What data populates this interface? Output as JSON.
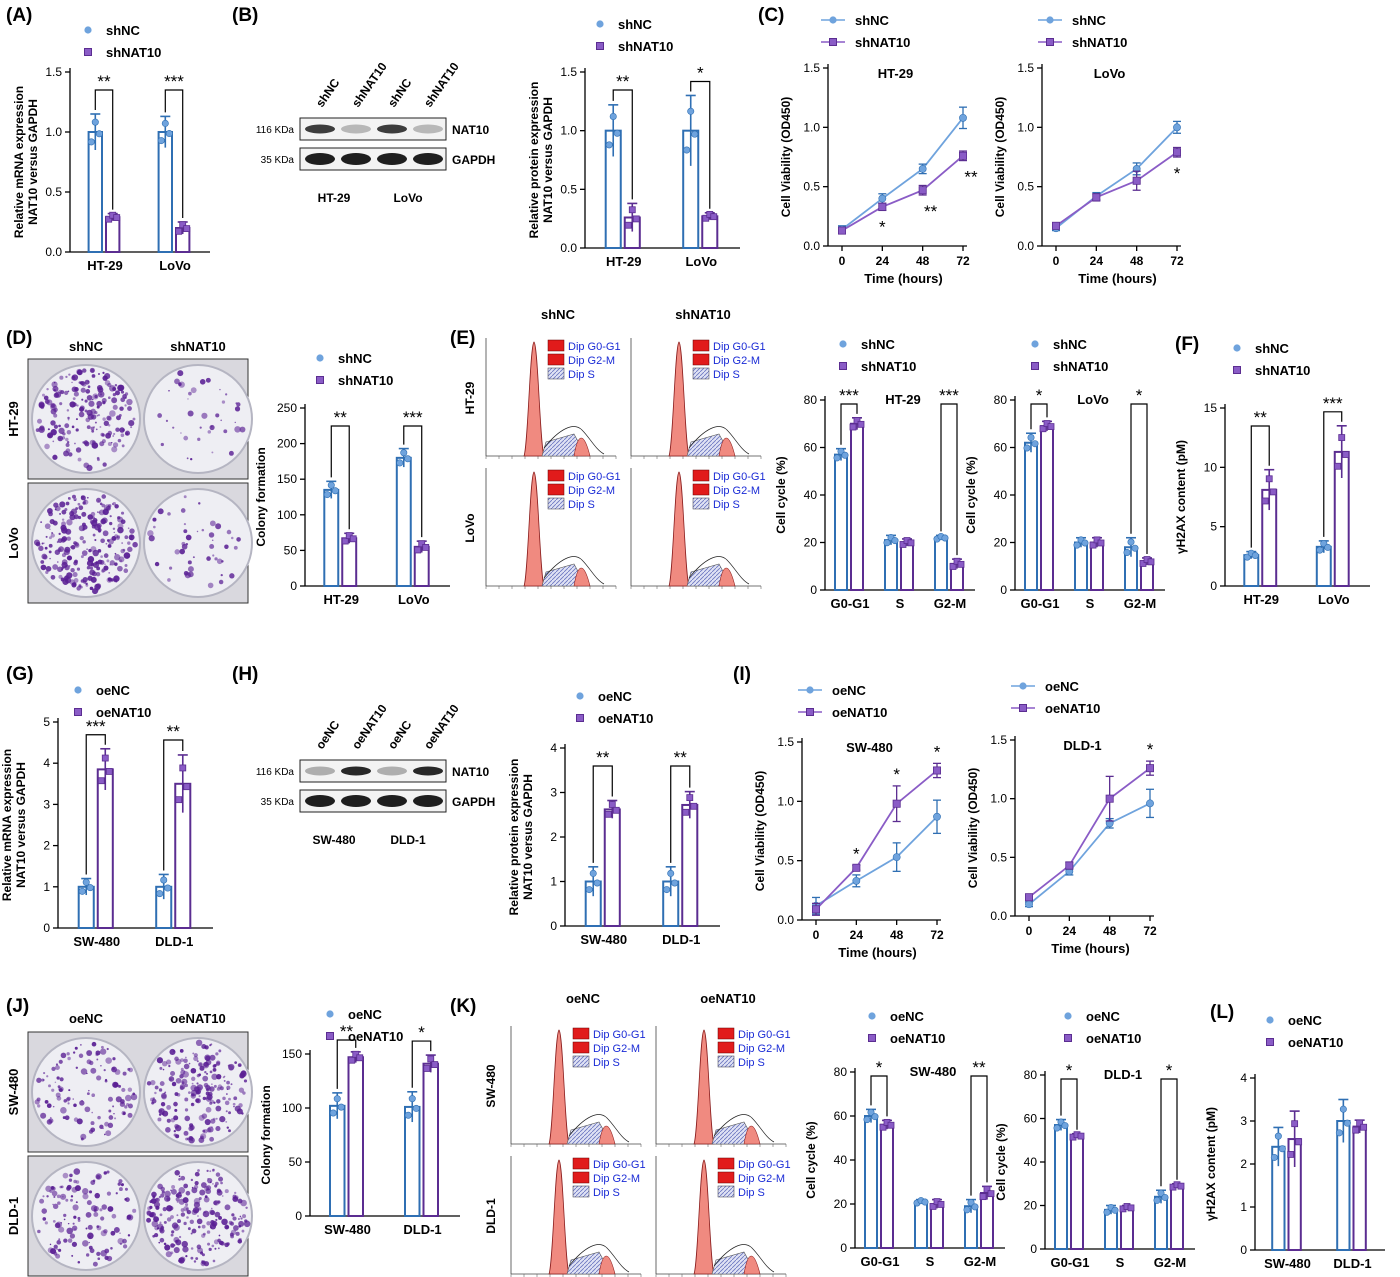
{
  "colors": {
    "ctrl": "#2f6fb3",
    "ctrl_marker": "#6fa3dd",
    "trt": "#5b2d91",
    "trt_marker": "#8a5cc6",
    "axis": "#000000",
    "dish_bg": "#eeeef3",
    "colony": "#5a1f94",
    "peak": "#f08a80",
    "s_phase": "#c9cde8",
    "flow_legend_red": "#e11b1b",
    "flow_text": "#1a2bd6"
  },
  "panels": {
    "A": {
      "label": "(A)"
    },
    "B": {
      "label": "(B)"
    },
    "C": {
      "label": "(C)"
    },
    "D": {
      "label": "(D)"
    },
    "E": {
      "label": "(E)"
    },
    "F": {
      "label": "(F)"
    },
    "G": {
      "label": "(G)"
    },
    "H": {
      "label": "(H)"
    },
    "I": {
      "label": "(I)"
    },
    "J": {
      "label": "(J)"
    },
    "K": {
      "label": "(K)"
    },
    "L": {
      "label": "(L)"
    }
  },
  "blots": [
    {
      "id": "B",
      "lanes": [
        "shNC",
        "shNAT10",
        "shNC",
        "shNAT10"
      ],
      "rows": [
        {
          "kda": "116 KDa",
          "name": "NAT10",
          "intensity": [
            0.85,
            0.25,
            0.85,
            0.25
          ]
        },
        {
          "kda": "35 KDa",
          "name": "GAPDH",
          "intensity": [
            1,
            1,
            1,
            1
          ]
        }
      ],
      "groups": [
        "HT-29",
        "LoVo"
      ]
    },
    {
      "id": "H",
      "lanes": [
        "oeNC",
        "oeNAT10",
        "oeNC",
        "oeNAT10"
      ],
      "rows": [
        {
          "kda": "116 KDa",
          "name": "NAT10",
          "intensity": [
            0.3,
            0.95,
            0.3,
            0.95
          ]
        },
        {
          "kda": "35 KDa",
          "name": "GAPDH",
          "intensity": [
            1,
            1,
            1,
            1
          ]
        }
      ],
      "groups": [
        "SW-480",
        "DLD-1"
      ]
    }
  ],
  "dishes": [
    {
      "id": "D",
      "cols": [
        "shNC",
        "shNAT10"
      ],
      "rows": [
        "HT-29",
        "LoVo"
      ],
      "density": [
        [
          0.75,
          0.15
        ],
        [
          0.95,
          0.18
        ]
      ]
    },
    {
      "id": "J",
      "cols": [
        "oeNC",
        "oeNAT10"
      ],
      "rows": [
        "SW-480",
        "DLD-1"
      ],
      "density": [
        [
          0.45,
          0.8
        ],
        [
          0.5,
          0.85
        ]
      ]
    }
  ],
  "flow": [
    {
      "id": "E",
      "cols": [
        "shNC",
        "shNAT10"
      ],
      "rows": [
        "HT-29",
        "LoVo"
      ],
      "legend": [
        "Dip G0-G1",
        "Dip G2-M",
        "Dip S"
      ]
    },
    {
      "id": "K",
      "cols": [
        "oeNC",
        "oeNAT10"
      ],
      "rows": [
        "SW-480",
        "DLD-1"
      ],
      "legend": [
        "Dip G0-G1",
        "Dip G2-M",
        "Dip S"
      ]
    }
  ],
  "chart_data": [
    {
      "id": "A",
      "type": "bar",
      "legend": [
        "shNC",
        "shNAT10"
      ],
      "categories": [
        "HT-29",
        "LoVo"
      ],
      "ylabel": "Relative mRNA expression NAT10 versus GAPDH",
      "ylim": [
        0,
        1.5
      ],
      "yticks": [
        "0.0",
        "0.5",
        "1.0",
        "1.5"
      ],
      "series": [
        {
          "name": "shNC",
          "values": [
            1.0,
            1.0
          ],
          "errors": [
            0.15,
            0.13
          ]
        },
        {
          "name": "shNAT10",
          "values": [
            0.29,
            0.2
          ],
          "errors": [
            0.03,
            0.05
          ]
        }
      ],
      "sig": [
        "**",
        "***"
      ]
    },
    {
      "id": "Bq",
      "type": "bar",
      "legend": [
        "shNC",
        "shNAT10"
      ],
      "categories": [
        "HT-29",
        "LoVo"
      ],
      "ylabel": "Relative protein expression NAT10 versus GAPDH",
      "ylim": [
        0,
        1.5
      ],
      "yticks": [
        "0.0",
        "0.5",
        "1.0",
        "1.5"
      ],
      "series": [
        {
          "name": "shNC",
          "values": [
            1.0,
            1.0
          ],
          "errors": [
            0.22,
            0.3
          ]
        },
        {
          "name": "shNAT10",
          "values": [
            0.26,
            0.27
          ],
          "errors": [
            0.12,
            0.03
          ]
        }
      ],
      "sig": [
        "**",
        "*"
      ]
    },
    {
      "id": "C1",
      "type": "line",
      "legend": [
        "shNC",
        "shNAT10"
      ],
      "title": "HT-29",
      "x": [
        0,
        24,
        48,
        72
      ],
      "xlabel": "Time (hours)",
      "ylabel": "Cell Viability (OD450)",
      "ylim": [
        0,
        1.5
      ],
      "yticks": [
        "0.0",
        "0.5",
        "1.0",
        "1.5"
      ],
      "series": [
        {
          "name": "shNC",
          "values": [
            0.14,
            0.4,
            0.65,
            1.08
          ],
          "errors": [
            0.03,
            0.04,
            0.04,
            0.09
          ]
        },
        {
          "name": "shNAT10",
          "values": [
            0.13,
            0.33,
            0.47,
            0.76
          ],
          "errors": [
            0.02,
            0.03,
            0.04,
            0.04
          ]
        }
      ],
      "sig": [
        "",
        "*",
        "**",
        "**"
      ]
    },
    {
      "id": "C2",
      "type": "line",
      "legend": [
        "shNC",
        "shNAT10"
      ],
      "title": "LoVo",
      "x": [
        0,
        24,
        48,
        72
      ],
      "xlabel": "Time (hours)",
      "ylabel": "Cell Viability (OD450)",
      "ylim": [
        0,
        1.5
      ],
      "yticks": [
        "0.0",
        "0.5",
        "1.0",
        "1.5"
      ],
      "series": [
        {
          "name": "shNC",
          "values": [
            0.15,
            0.42,
            0.65,
            1.0
          ],
          "errors": [
            0.02,
            0.03,
            0.05,
            0.05
          ]
        },
        {
          "name": "shNAT10",
          "values": [
            0.17,
            0.41,
            0.55,
            0.79
          ],
          "errors": [
            0.02,
            0.03,
            0.08,
            0.04
          ]
        }
      ],
      "sig": [
        "",
        "",
        "",
        "*"
      ]
    },
    {
      "id": "Dq",
      "type": "bar",
      "legend": [
        "shNC",
        "shNAT10"
      ],
      "categories": [
        "HT-29",
        "LoVo"
      ],
      "ylabel": "Colony formation",
      "ylim": [
        0,
        250
      ],
      "yticks": [
        "0",
        "50",
        "100",
        "150",
        "200",
        "250"
      ],
      "series": [
        {
          "name": "shNC",
          "values": [
            135,
            180
          ],
          "errors": [
            12,
            13
          ]
        },
        {
          "name": "shNAT10",
          "values": [
            67,
            55
          ],
          "errors": [
            7,
            8
          ]
        }
      ],
      "sig": [
        "**",
        "***"
      ]
    },
    {
      "id": "E1",
      "type": "bar",
      "legend": [
        "shNC",
        "shNAT10"
      ],
      "title": "HT-29",
      "categories": [
        "G0-G1",
        "S",
        "G2-M"
      ],
      "ylabel": "Cell cycle (%)",
      "ylim": [
        0,
        80
      ],
      "yticks": [
        "0",
        "20",
        "40",
        "60",
        "80"
      ],
      "series": [
        {
          "name": "shNC",
          "values": [
            57,
            21,
            22
          ],
          "errors": [
            2.5,
            2,
            1
          ]
        },
        {
          "name": "shNAT10",
          "values": [
            70,
            20,
            11
          ],
          "errors": [
            2.5,
            1.5,
            2
          ]
        }
      ],
      "sig": [
        "***",
        "",
        "***"
      ]
    },
    {
      "id": "E2",
      "type": "bar",
      "legend": [
        "shNC",
        "shNAT10"
      ],
      "title": "LoVo",
      "categories": [
        "G0-G1",
        "S",
        "G2-M"
      ],
      "ylabel": "Cell cycle (%)",
      "ylim": [
        0,
        80
      ],
      "yticks": [
        "0",
        "20",
        "40",
        "60",
        "80"
      ],
      "series": [
        {
          "name": "shNC",
          "values": [
            62,
            20,
            18
          ],
          "errors": [
            4,
            2,
            4
          ]
        },
        {
          "name": "shNAT10",
          "values": [
            69,
            20,
            12
          ],
          "errors": [
            2,
            2,
            1.5
          ]
        }
      ],
      "sig": [
        "*",
        "",
        "*"
      ]
    },
    {
      "id": "Fq",
      "type": "bar",
      "legend": [
        "shNC",
        "shNAT10"
      ],
      "categories": [
        "HT-29",
        "LoVo"
      ],
      "ylabel": "γH2AX content (pM)",
      "ylim": [
        0,
        15
      ],
      "yticks": [
        "0",
        "5",
        "10",
        "15"
      ],
      "series": [
        {
          "name": "shNC",
          "values": [
            2.6,
            3.3
          ],
          "errors": [
            0.3,
            0.5
          ]
        },
        {
          "name": "shNAT10",
          "values": [
            8.1,
            11.3
          ],
          "errors": [
            1.7,
            2.2
          ]
        }
      ],
      "sig": [
        "**",
        "***"
      ]
    },
    {
      "id": "Gq",
      "type": "bar",
      "legend": [
        "oeNC",
        "oeNAT10"
      ],
      "categories": [
        "SW-480",
        "DLD-1"
      ],
      "ylabel": "Relative mRNA expression NAT10 versus GAPDH",
      "ylim": [
        0,
        5
      ],
      "yticks": [
        "0",
        "1",
        "2",
        "3",
        "4",
        "5"
      ],
      "series": [
        {
          "name": "oeNC",
          "values": [
            1.0,
            1.0
          ],
          "errors": [
            0.2,
            0.3
          ]
        },
        {
          "name": "oeNAT10",
          "values": [
            3.85,
            3.5
          ],
          "errors": [
            0.5,
            0.7
          ]
        }
      ],
      "sig": [
        "***",
        "**"
      ]
    },
    {
      "id": "Hq",
      "type": "bar",
      "legend": [
        "oeNC",
        "oeNAT10"
      ],
      "categories": [
        "SW-480",
        "DLD-1"
      ],
      "ylabel": "Relative protein expression NAT10 versus GAPDH",
      "ylim": [
        0,
        4
      ],
      "yticks": [
        "0",
        "1",
        "2",
        "3",
        "4"
      ],
      "series": [
        {
          "name": "oeNC",
          "values": [
            1.0,
            1.0
          ],
          "errors": [
            0.33,
            0.33
          ]
        },
        {
          "name": "oeNAT10",
          "values": [
            2.62,
            2.72
          ],
          "errors": [
            0.2,
            0.3
          ]
        }
      ],
      "sig": [
        "**",
        "**"
      ]
    },
    {
      "id": "I1",
      "type": "line",
      "legend": [
        "oeNC",
        "oeNAT10"
      ],
      "title": "SW-480",
      "x": [
        0,
        24,
        48,
        72
      ],
      "xlabel": "Time (hours)",
      "ylabel": "Cell Viability (OD450)",
      "ylim": [
        0,
        1.5
      ],
      "yticks": [
        "0.0",
        "0.5",
        "1.0",
        "1.5"
      ],
      "series": [
        {
          "name": "oeNC",
          "values": [
            0.12,
            0.33,
            0.53,
            0.87
          ],
          "errors": [
            0.07,
            0.05,
            0.12,
            0.14
          ]
        },
        {
          "name": "oeNAT10",
          "values": [
            0.09,
            0.44,
            0.98,
            1.26
          ],
          "errors": [
            0.05,
            0.02,
            0.15,
            0.06
          ]
        }
      ],
      "sig": [
        "",
        "*",
        "*",
        "*"
      ]
    },
    {
      "id": "I2",
      "type": "line",
      "legend": [
        "oeNC",
        "oeNAT10"
      ],
      "title": "DLD-1",
      "x": [
        0,
        24,
        48,
        72
      ],
      "xlabel": "Time (hours)",
      "ylabel": "Cell Viability (OD450)",
      "ylim": [
        0,
        1.5
      ],
      "yticks": [
        "0.0",
        "0.5",
        "1.0",
        "1.5"
      ],
      "series": [
        {
          "name": "oeNC",
          "values": [
            0.1,
            0.38,
            0.79,
            0.96
          ],
          "errors": [
            0.02,
            0.03,
            0.04,
            0.12
          ]
        },
        {
          "name": "oeNAT10",
          "values": [
            0.16,
            0.43,
            1.0,
            1.26
          ],
          "errors": [
            0.02,
            0.03,
            0.19,
            0.06
          ]
        }
      ],
      "sig": [
        "",
        "",
        "",
        "*"
      ]
    },
    {
      "id": "Jq",
      "type": "bar",
      "legend": [
        "oeNC",
        "oeNAT10"
      ],
      "categories": [
        "SW-480",
        "DLD-1"
      ],
      "ylabel": "Colony formation",
      "ylim": [
        0,
        150
      ],
      "yticks": [
        "0",
        "50",
        "100",
        "150"
      ],
      "series": [
        {
          "name": "oeNC",
          "values": [
            102,
            101
          ],
          "errors": [
            12,
            14
          ]
        },
        {
          "name": "oeNAT10",
          "values": [
            147,
            141
          ],
          "errors": [
            5,
            8
          ]
        }
      ],
      "sig": [
        "**",
        "*"
      ]
    },
    {
      "id": "K1",
      "type": "bar",
      "legend": [
        "oeNC",
        "oeNAT10"
      ],
      "title": "SW-480",
      "categories": [
        "G0-G1",
        "S",
        "G2-M"
      ],
      "ylabel": "Cell cycle (%)",
      "ylim": [
        0,
        80
      ],
      "yticks": [
        "0",
        "20",
        "40",
        "60",
        "80"
      ],
      "series": [
        {
          "name": "oeNC",
          "values": [
            60,
            21,
            19
          ],
          "errors": [
            3,
            1,
            3
          ]
        },
        {
          "name": "oeNAT10",
          "values": [
            56,
            20,
            25
          ],
          "errors": [
            2,
            2,
            3
          ]
        }
      ],
      "sig": [
        "*",
        "",
        "**"
      ]
    },
    {
      "id": "K2",
      "type": "bar",
      "legend": [
        "oeNC",
        "oeNAT10"
      ],
      "title": "DLD-1",
      "categories": [
        "G0-G1",
        "S",
        "G2-M"
      ],
      "ylabel": "Cell cycle (%)",
      "ylim": [
        0,
        80
      ],
      "yticks": [
        "0",
        "20",
        "40",
        "60",
        "80"
      ],
      "series": [
        {
          "name": "oeNC",
          "values": [
            57,
            18,
            24
          ],
          "errors": [
            2.5,
            2,
            3
          ]
        },
        {
          "name": "oeNAT10",
          "values": [
            52,
            19,
            29
          ],
          "errors": [
            1,
            1,
            1
          ]
        }
      ],
      "sig": [
        "*",
        "",
        "*"
      ]
    },
    {
      "id": "Lq",
      "type": "bar",
      "legend": [
        "oeNC",
        "oeNAT10"
      ],
      "categories": [
        "SW-480",
        "DLD-1"
      ],
      "ylabel": "γH2AX content (pM)",
      "ylim": [
        0,
        4
      ],
      "yticks": [
        "0",
        "1",
        "2",
        "3",
        "4"
      ],
      "series": [
        {
          "name": "oeNC",
          "values": [
            2.4,
            3.0
          ],
          "errors": [
            0.45,
            0.5
          ]
        },
        {
          "name": "oeNAT10",
          "values": [
            2.58,
            2.87
          ],
          "errors": [
            0.65,
            0.15
          ]
        }
      ],
      "sig": [
        "",
        ""
      ]
    }
  ]
}
